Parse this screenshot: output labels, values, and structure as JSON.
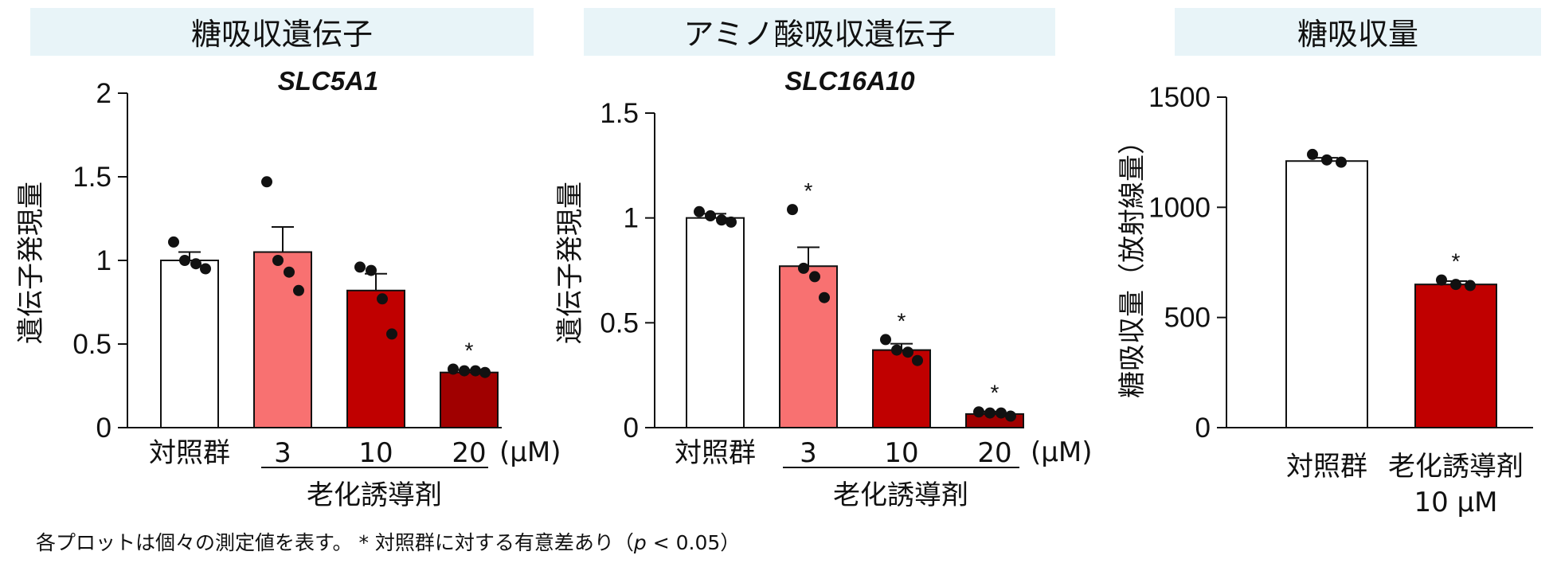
{
  "footnote": {
    "text_main": "各プロットは個々の測定値を表す。 * 対照群に対する有意差あり（",
    "p_symbol": "p",
    "text_end": " < 0.05）"
  },
  "group_label": "老化誘導剤",
  "chart_data": [
    {
      "type": "bar",
      "panel_header": "糖吸収遺伝子",
      "title": "SLC5A1",
      "ylabel": "遺伝子発現量",
      "ylim": [
        0,
        2
      ],
      "yticks": [
        0,
        0.5,
        1,
        1.5,
        2
      ],
      "ytick_labels": [
        "0",
        "0.5",
        "1",
        "1.5",
        "2"
      ],
      "categories": [
        "対照群",
        "3",
        "10",
        "20"
      ],
      "unit_label": "(μM)",
      "group_label": "老化誘導剤",
      "values": [
        1.0,
        1.05,
        0.82,
        0.33
      ],
      "errors": [
        0.05,
        0.15,
        0.1,
        0.015
      ],
      "colors": [
        "#ffffff",
        "#f87171",
        "#c00000",
        "#a00000"
      ],
      "points": [
        [
          1.11,
          1.0,
          0.98,
          0.95
        ],
        [
          1.47,
          1.0,
          0.93,
          0.82
        ],
        [
          0.96,
          0.94,
          0.77,
          0.56
        ],
        [
          0.35,
          0.34,
          0.34,
          0.33
        ]
      ],
      "significant": [
        false,
        false,
        false,
        true
      ]
    },
    {
      "type": "bar",
      "panel_header": "アミノ酸吸収遺伝子",
      "title": "SLC16A10",
      "ylabel": "遺伝子発現量",
      "ylim": [
        0,
        1.5
      ],
      "yticks": [
        0,
        0.5,
        1,
        1.5
      ],
      "ytick_labels": [
        "0",
        "0.5",
        "1",
        "1.5"
      ],
      "categories": [
        "対照群",
        "3",
        "10",
        "20"
      ],
      "unit_label": "(μM)",
      "group_label": "老化誘導剤",
      "values": [
        1.0,
        0.77,
        0.37,
        0.065
      ],
      "errors": [
        0.02,
        0.09,
        0.03,
        0.012
      ],
      "colors": [
        "#ffffff",
        "#f87171",
        "#c00000",
        "#a00000"
      ],
      "points": [
        [
          1.03,
          1.01,
          0.99,
          0.98
        ],
        [
          1.04,
          0.76,
          0.72,
          0.62
        ],
        [
          0.42,
          0.37,
          0.36,
          0.32
        ],
        [
          0.075,
          0.07,
          0.07,
          0.055
        ]
      ],
      "significant": [
        false,
        true,
        true,
        true
      ]
    },
    {
      "type": "bar",
      "panel_header": "糖吸収量",
      "title": "",
      "ylabel": "糖吸収量（放射線量）",
      "ylim": [
        0,
        1500
      ],
      "yticks": [
        0,
        500,
        1000,
        1500
      ],
      "ytick_labels": [
        "0",
        "500",
        "1000",
        "1500"
      ],
      "categories": [
        "対照群",
        "老化誘導剤"
      ],
      "category_sublabels": [
        "",
        "10 μM"
      ],
      "values": [
        1210,
        650
      ],
      "errors": [
        15,
        15
      ],
      "colors": [
        "#ffffff",
        "#c00000"
      ],
      "points": [
        [
          1240,
          1215,
          1205
        ],
        [
          670,
          650,
          645
        ]
      ],
      "significant": [
        false,
        true
      ]
    }
  ]
}
